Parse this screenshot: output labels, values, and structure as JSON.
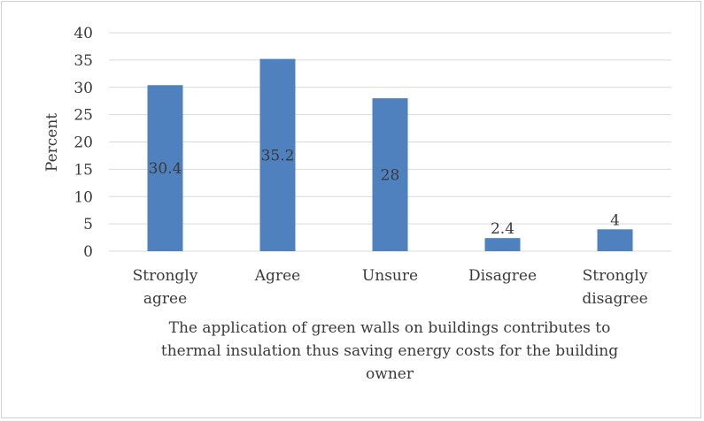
{
  "chart_data": {
    "type": "bar",
    "categories": [
      "Strongly agree",
      "Agree",
      "Unsure",
      "Disagree",
      "Strongly disagree"
    ],
    "category_label_lines": [
      [
        "Strongly",
        "agree"
      ],
      [
        "Agree"
      ],
      [
        "Unsure"
      ],
      [
        "Disagree"
      ],
      [
        "Strongly",
        "disagree"
      ]
    ],
    "values": [
      30.4,
      35.2,
      28,
      2.4,
      4
    ],
    "data_labels": [
      "30.4",
      "35.2",
      "28",
      "2.4",
      "4"
    ],
    "title": "",
    "xlabel": "The application of green walls on buildings contributes to thermal insulation thus saving energy costs for the building owner",
    "xlabel_lines": [
      "The application of green walls on buildings contributes to",
      "thermal insulation thus saving energy costs for the building",
      "owner"
    ],
    "ylabel": "Percent",
    "ylim": [
      0,
      40
    ],
    "yticks": [
      0,
      5,
      10,
      15,
      20,
      25,
      30,
      35,
      40
    ],
    "grid": true,
    "legend": "none",
    "bar_color": "#4e81bd",
    "grid_color": "#d9d9d9",
    "text_color": "#3a3a3a"
  }
}
